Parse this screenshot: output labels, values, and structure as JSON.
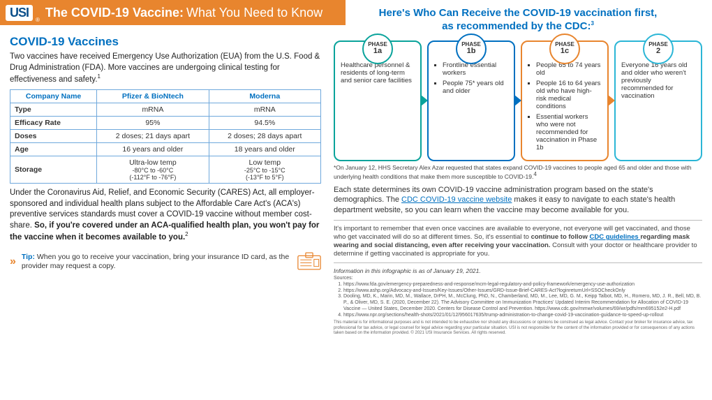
{
  "header": {
    "logo_text": "USI",
    "title_bold": "The COVID-19 Vaccine:",
    "title_rest": "What You Need to Know"
  },
  "left": {
    "section_title": "COVID-19 Vaccines",
    "intro": "Two vaccines have received Emergency Use Authorization (EUA) from the U.S. Food & Drug Administration (FDA). More vaccines are undergoing clinical testing for effectiveness and safety.",
    "intro_sup": "1",
    "table": {
      "col0": "Company Name",
      "col1": "Pfizer & BioNtech",
      "col2": "Moderna",
      "rows": [
        {
          "h": "Type",
          "a": "mRNA",
          "b": "mRNA"
        },
        {
          "h": "Efficacy Rate",
          "a": "95%",
          "b": "94.5%"
        },
        {
          "h": "Doses",
          "a": "2 doses; 21 days apart",
          "b": "2 doses; 28 days apart"
        },
        {
          "h": "Age",
          "a": "16 years and older",
          "b": "18 years and older"
        },
        {
          "h": "Storage",
          "a": "Ultra-low temp\n-80°C to -60°C\n(-112°F to -76°F)",
          "b": "Low temp\n-25°C to -15°C\n(-13°F to 5°F)"
        }
      ]
    },
    "cares_para_1": "Under the Coronavirus Aid, Relief, and Economic Security (CARES) Act, all employer-sponsored and individual health plans subject to the Affordable Care Act's (ACA's) preventive services standards must cover a COVID-19 vaccine without member cost-share. ",
    "cares_para_bold": "So, if you're covered under an ACA-qualified health plan, you won't pay for the vaccine when it becomes available to you.",
    "cares_sup": "2",
    "tip_label": "Tip:",
    "tip_text": " When you go to receive your vaccination, bring your insurance ID card, as the provider may request a copy."
  },
  "right": {
    "title_line1": "Here's Who Can Receive the COVID-19 vaccination first,",
    "title_line2": "as recommended by the CDC:",
    "title_sup": "3",
    "phase_colors": {
      "1a": "#0aa39b",
      "1b": "#0070c0",
      "1c": "#e8852e",
      "2": "#2bb6d6"
    },
    "phases": [
      {
        "id": "1a",
        "label": "PHASE",
        "num": "1a",
        "body_type": "plain",
        "body": "Healthcare personnel & residents of long-term and senior care facilities"
      },
      {
        "id": "1b",
        "label": "PHASE",
        "num": "1b",
        "body_type": "list",
        "items": [
          "Frontline essential workers",
          "People 75* years old and older"
        ]
      },
      {
        "id": "1c",
        "label": "PHASE",
        "num": "1c",
        "body_type": "list",
        "items": [
          "People 65 to 74 years old",
          "People 16 to 64 years old who have high-risk medical conditions",
          "Essential workers who were not recommended for vaccination in Phase 1b"
        ]
      },
      {
        "id": "2",
        "label": "PHASE",
        "num": "2",
        "body_type": "plain",
        "body": "Everyone 16 years old and older who weren't previously recommended for vaccination"
      }
    ],
    "asterisk_note": "*On January 12, HHS Secretary Alex Azar requested that states expand COVID-19 vaccines to people aged 65 and older and those with underlying health conditions that make them more susceptible to COVID-19.",
    "asterisk_sup": "4",
    "state_para_1": "Each state determines its own COVID-19 vaccine administration program based on the state's demographics. The ",
    "state_link": "CDC COVID-19 vaccine website",
    "state_para_2": " makes it easy to navigate to each state's health department website, so you can learn when the vaccine may become available for you.",
    "remember_1": "It's important to remember that even once vaccines are available to everyone, not everyone will get vaccinated, and those who get vaccinated will do so at different times. So, it's essential to ",
    "remember_bold": "continue to follow ",
    "remember_link": "CDC guidelines ",
    "remember_bold2": "regarding mask wearing and social distancing, even after receiving your vaccination.",
    "remember_2": " Consult with your doctor or healthcare provider to determine if getting vaccinated is appropriate for you.",
    "asof": "Information in this infographic is as of January 19, 2021.",
    "sources_label": "Sources:",
    "sources": [
      "https://www.fda.gov/emergency-preparedness-and-response/mcm-legal-regulatory-and-policy-framework/emergency-use-authorization",
      "https://www.ashp.org/Advocacy-and-Issues/Key-Issues/Other-Issues/GRD-Issue-Brief-CARES-Act?loginreturnUrl=SSOCheckOnly",
      "Dooling, MD, K., Marin, MD, M., Wallace, DrPH, M., McClung, PhD, N., Chamberland, MD, M., Lee, MD, G. M., Keipp Talbot, MD, H., Romero, MD, J. R., Bell, MD, B. P., & Oliver, MD, S. E. (2020, December 22). The Advisory Committee on Immunization Practices' Updated Interim Recommendation for Allocation of COVID-19 Vaccine — United States, December 2020. Centers for Disease Control and Prevention. https://www.cdc.gov/mmwr/volumes/69/wr/pdfs/mm695152e2-H.pdf",
      "https://www.npr.org/sections/health-shots/2021/01/12/956017635/trump-administration-to-change-covid-19-vaccination-guidance-to-speed-up-rollout"
    ],
    "disclaimer": "This material is for informational purposes and is not intended to be exhaustive nor should any discussions or opinions be construed as legal advice. Contact your broker for insurance advice, tax professional for tax advice, or legal counsel for legal advice regarding your particular situation. USI is not responsible for the content of the information provided or for consequences of any actions taken based on the information provided. © 2021 USI Insurance Services. All rights reserved."
  }
}
